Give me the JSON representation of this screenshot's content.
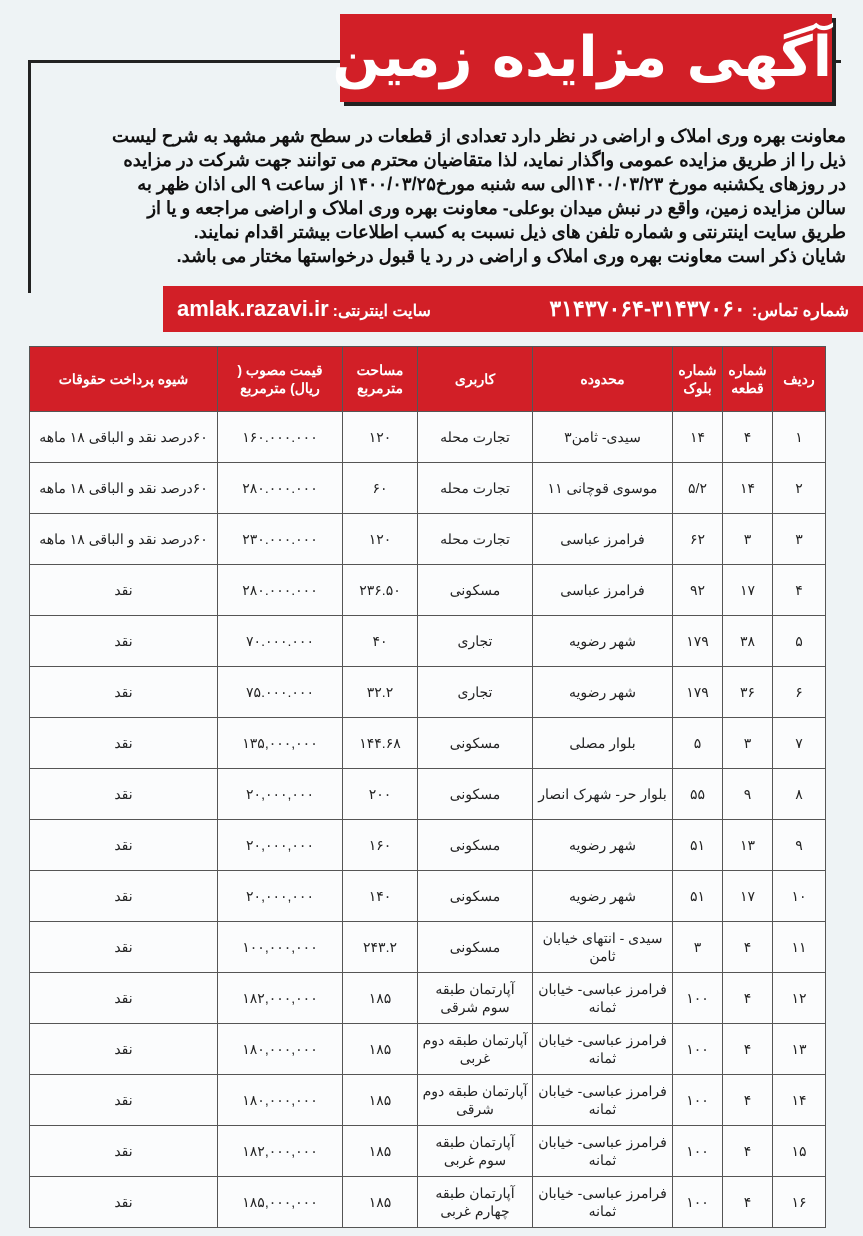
{
  "title": "آگهی مزایده زمین",
  "paragraph": [
    "معاونت بهره وری املاک و اراضی در نظر دارد تعدادی از قطعات در سطح شهر مشهد به شرح لیست",
    "ذیل را از طریق مزایده عمومی واگذار نماید، لذا متقاضیان محترم می توانند جهت شرکت در مزایده",
    "در روزهای یکشنبه مورخ ۱۴۰۰/۰۳/۲۳الی سه شنبه مورخ۱۴۰۰/۰۳/۲۵ از ساعت ۹ الی اذان ظهر به",
    "سالن مزایده زمین، واقع در نبش میدان بوعلی- معاونت بهره وری املاک و اراضی مراجعه و یا از",
    "طریق سایت اینترنتی و شماره تلفن های ذیل نسبت به کسب اطلاعات بیشتر اقدام نمایند.",
    "شایان ذکر است معاونت بهره وری املاک و اراضی در رد یا قبول درخواستها مختار می باشد."
  ],
  "contact": {
    "phone_label": "شماره تماس:",
    "phone": "۳۱۴۳۷۰۶۰-۳۱۴۳۷۰۶۴",
    "web_label": "سایت اینترنتی:",
    "web": "amlak.razavi.ir"
  },
  "table": {
    "headers": [
      "ردیف",
      "شماره قطعه",
      "شماره بلوک",
      "محدوده",
      "کاربری",
      "مساحت مترمربع",
      "قیمت مصوب ( ریال) مترمربع",
      "شیوه پرداخت حقوقات"
    ],
    "rows": [
      [
        "۱",
        "۴",
        "۱۴",
        "سیدی- ثامن۳",
        "تجارت محله",
        "۱۲۰",
        "۱۶۰.۰۰۰.۰۰۰",
        "۶۰درصد نقد و الباقی ۱۸ ماهه"
      ],
      [
        "۲",
        "۱۴",
        "۵/۲",
        "موسوی قوچانی ۱۱",
        "تجارت محله",
        "۶۰",
        "۲۸۰.۰۰۰.۰۰۰",
        "۶۰درصد نقد و الباقی ۱۸ ماهه"
      ],
      [
        "۳",
        "۳",
        "۶۲",
        "فرامرز عباسی",
        "تجارت محله",
        "۱۲۰",
        "۲۳۰.۰۰۰.۰۰۰",
        "۶۰درصد نقد و الباقی ۱۸ ماهه"
      ],
      [
        "۴",
        "۱۷",
        "۹۲",
        "فرامرز عباسی",
        "مسکونی",
        "۲۳۶.۵۰",
        "۲۸۰.۰۰۰.۰۰۰",
        "نقد"
      ],
      [
        "۵",
        "۳۸",
        "۱۷۹",
        "شهر رضویه",
        "تجاری",
        "۴۰",
        "۷۰.۰۰۰.۰۰۰",
        "نقد"
      ],
      [
        "۶",
        "۳۶",
        "۱۷۹",
        "شهر رضویه",
        "تجاری",
        "۳۲.۲",
        "۷۵.۰۰۰.۰۰۰",
        "نقد"
      ],
      [
        "۷",
        "۳",
        "۵",
        "بلوار مصلی",
        "مسکونی",
        "۱۴۴.۶۸",
        "۱۳۵,۰۰۰,۰۰۰",
        "نقد"
      ],
      [
        "۸",
        "۹",
        "۵۵",
        "بلوار حر- شهرک انصار",
        "مسکونی",
        "۲۰۰",
        "۲۰,۰۰۰,۰۰۰",
        "نقد"
      ],
      [
        "۹",
        "۱۳",
        "۵۱",
        "شهر رضویه",
        "مسکونی",
        "۱۶۰",
        "۲۰,۰۰۰,۰۰۰",
        "نقد"
      ],
      [
        "۱۰",
        "۱۷",
        "۵۱",
        "شهر رضویه",
        "مسکونی",
        "۱۴۰",
        "۲۰,۰۰۰,۰۰۰",
        "نقد"
      ],
      [
        "۱۱",
        "۴",
        "۳",
        "سیدی - انتهای خیابان ثامن",
        "مسکونی",
        "۲۴۳.۲",
        "۱۰۰,۰۰۰,۰۰۰",
        "نقد"
      ],
      [
        "۱۲",
        "۴",
        "۱۰۰",
        "فرامرز عباسی- خیابان ثمانه",
        "آپارتمان طبقه سوم شرقی",
        "۱۸۵",
        "۱۸۲,۰۰۰,۰۰۰",
        "نقد"
      ],
      [
        "۱۳",
        "۴",
        "۱۰۰",
        "فرامرز عباسی- خیابان ثمانه",
        "آپارتمان طبقه دوم غربی",
        "۱۸۵",
        "۱۸۰,۰۰۰,۰۰۰",
        "نقد"
      ],
      [
        "۱۴",
        "۴",
        "۱۰۰",
        "فرامرز عباسی- خیابان ثمانه",
        "آپارتمان طبقه دوم شرقی",
        "۱۸۵",
        "۱۸۰,۰۰۰,۰۰۰",
        "نقد"
      ],
      [
        "۱۵",
        "۴",
        "۱۰۰",
        "فرامرز عباسی- خیابان ثمانه",
        "آپارتمان طبقه سوم غربی",
        "۱۸۵",
        "۱۸۲,۰۰۰,۰۰۰",
        "نقد"
      ],
      [
        "۱۶",
        "۴",
        "۱۰۰",
        "فرامرز عباسی- خیابان ثمانه",
        "آپارتمان طبقه چهارم غربی",
        "۱۸۵",
        "۱۸۵,۰۰۰,۰۰۰",
        "نقد"
      ]
    ]
  },
  "colors": {
    "accent": "#d21f27"
  }
}
